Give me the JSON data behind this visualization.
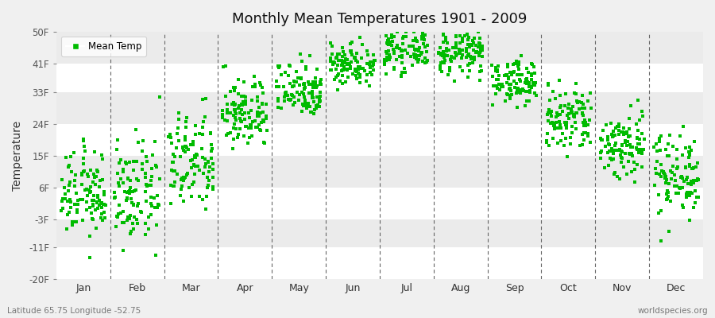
{
  "title": "Monthly Mean Temperatures 1901 - 2009",
  "ylabel": "Temperature",
  "ytick_labels": [
    "50F",
    "41F",
    "33F",
    "24F",
    "15F",
    "6F",
    "-3F",
    "-11F",
    "-20F"
  ],
  "ytick_values": [
    50,
    41,
    33,
    24,
    15,
    6,
    -3,
    -11,
    -20
  ],
  "ylim": [
    -20,
    50
  ],
  "xlim": [
    0.5,
    12.5
  ],
  "months": [
    "Jan",
    "Feb",
    "Mar",
    "Apr",
    "May",
    "Jun",
    "Jul",
    "Aug",
    "Sep",
    "Oct",
    "Nov",
    "Dec"
  ],
  "month_positions": [
    1,
    2,
    3,
    4,
    5,
    6,
    7,
    8,
    9,
    10,
    11,
    12
  ],
  "dot_color": "#00BB00",
  "dot_size": 7,
  "background_color": "#f0f0f0",
  "plot_bg_color": "#ffffff",
  "band_colors": [
    "#ffffff",
    "#ebebeb"
  ],
  "grid_color": "#666666",
  "legend_label": "Mean Temp",
  "bottom_left_text": "Latitude 65.75 Longitude -52.75",
  "bottom_right_text": "worldspecies.org",
  "n_years": 109,
  "mean_temps_F": {
    "Jan": 4,
    "Feb": 4,
    "Mar": 13,
    "Apr": 27,
    "May": 34,
    "Jun": 41,
    "Jul": 45,
    "Aug": 44,
    "Sep": 36,
    "Oct": 25,
    "Nov": 18,
    "Dec": 10
  },
  "spread_F": {
    "Jan": 6,
    "Feb": 7,
    "Mar": 7,
    "Apr": 5,
    "May": 4,
    "Jun": 3,
    "Jul": 3,
    "Aug": 3,
    "Sep": 3,
    "Oct": 5,
    "Nov": 5,
    "Dec": 6
  }
}
